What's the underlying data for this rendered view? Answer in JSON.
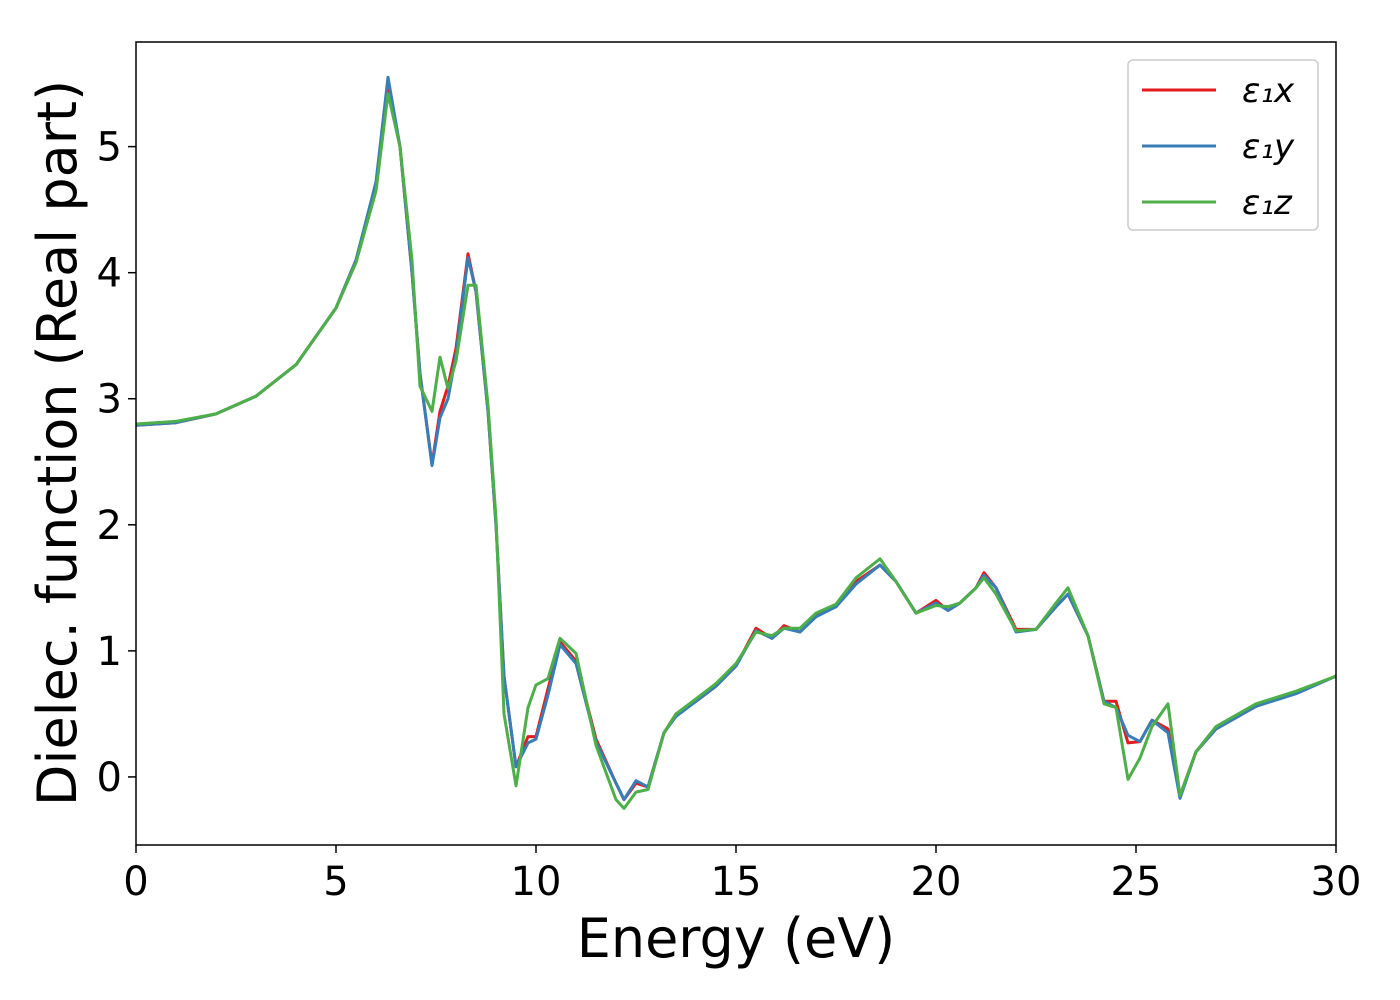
{
  "chart_data": {
    "type": "line",
    "xlabel": "Energy (eV)",
    "ylabel": "Dielec. function (Real part)",
    "xlim": [
      0,
      30
    ],
    "ylim": [
      -0.54,
      5.83
    ],
    "xticks": [
      0,
      5,
      10,
      15,
      20,
      25,
      30
    ],
    "yticks": [
      0,
      1,
      2,
      3,
      4,
      5
    ],
    "grid": false,
    "legend_position": "upper-right",
    "x": [
      0,
      1,
      2,
      3,
      4,
      5,
      5.5,
      6,
      6.3,
      6.6,
      6.9,
      7.1,
      7.4,
      7.6,
      7.8,
      8.0,
      8.3,
      8.5,
      8.8,
      9.0,
      9.2,
      9.5,
      9.8,
      10,
      10.3,
      10.6,
      11,
      11.5,
      12,
      12.2,
      12.5,
      12.8,
      13.2,
      13.5,
      14,
      14.5,
      15,
      15.5,
      15.9,
      16.2,
      16.6,
      17,
      17.5,
      18,
      18.6,
      19,
      19.5,
      20,
      20.3,
      20.6,
      21,
      21.2,
      21.5,
      22,
      22.5,
      23,
      23.3,
      23.8,
      24.2,
      24.5,
      24.8,
      25.1,
      25.4,
      25.8,
      26.1,
      26.5,
      27,
      28,
      29,
      30
    ],
    "series": [
      {
        "name": "ε₁x",
        "color": "#e41a1c",
        "values": [
          2.79,
          2.81,
          2.88,
          3.02,
          3.27,
          3.72,
          4.1,
          4.7,
          5.45,
          5.0,
          4.0,
          3.2,
          2.48,
          2.9,
          3.1,
          3.4,
          4.15,
          3.85,
          2.9,
          2.0,
          0.8,
          0.08,
          0.32,
          0.32,
          0.7,
          1.07,
          0.92,
          0.3,
          -0.05,
          -0.18,
          -0.05,
          -0.08,
          0.35,
          0.5,
          0.6,
          0.72,
          0.88,
          1.18,
          1.1,
          1.2,
          1.15,
          1.28,
          1.35,
          1.55,
          1.68,
          1.55,
          1.3,
          1.4,
          1.32,
          1.38,
          1.5,
          1.62,
          1.5,
          1.17,
          1.17,
          1.35,
          1.45,
          1.12,
          0.6,
          0.6,
          0.27,
          0.28,
          0.45,
          0.38,
          -0.15,
          0.2,
          0.38,
          0.56,
          0.67,
          0.8
        ]
      },
      {
        "name": "ε₁y",
        "color": "#377eb8",
        "values": [
          2.79,
          2.81,
          2.88,
          3.02,
          3.27,
          3.72,
          4.1,
          4.72,
          5.55,
          5.0,
          4.0,
          3.2,
          2.47,
          2.85,
          3.0,
          3.35,
          4.12,
          3.85,
          2.9,
          2.0,
          0.8,
          0.08,
          0.27,
          0.3,
          0.65,
          1.05,
          0.9,
          0.28,
          -0.05,
          -0.18,
          -0.03,
          -0.08,
          0.35,
          0.48,
          0.6,
          0.72,
          0.88,
          1.16,
          1.1,
          1.18,
          1.15,
          1.27,
          1.35,
          1.53,
          1.68,
          1.55,
          1.3,
          1.38,
          1.32,
          1.38,
          1.5,
          1.6,
          1.5,
          1.15,
          1.17,
          1.35,
          1.45,
          1.12,
          0.6,
          0.55,
          0.33,
          0.28,
          0.45,
          0.35,
          -0.17,
          0.2,
          0.38,
          0.56,
          0.66,
          0.8
        ]
      },
      {
        "name": "ε₁z",
        "color": "#4daf4a",
        "values": [
          2.8,
          2.82,
          2.88,
          3.02,
          3.27,
          3.72,
          4.08,
          4.65,
          5.42,
          5.0,
          4.1,
          3.1,
          2.9,
          3.33,
          3.08,
          3.3,
          3.9,
          3.9,
          2.95,
          2.05,
          0.5,
          -0.07,
          0.55,
          0.73,
          0.78,
          1.1,
          0.98,
          0.25,
          -0.18,
          -0.25,
          -0.12,
          -0.1,
          0.35,
          0.5,
          0.62,
          0.74,
          0.9,
          1.15,
          1.12,
          1.18,
          1.18,
          1.3,
          1.37,
          1.58,
          1.73,
          1.55,
          1.3,
          1.36,
          1.35,
          1.38,
          1.5,
          1.58,
          1.45,
          1.16,
          1.17,
          1.38,
          1.5,
          1.12,
          0.58,
          0.55,
          -0.02,
          0.15,
          0.4,
          0.58,
          -0.15,
          0.2,
          0.4,
          0.58,
          0.68,
          0.8
        ]
      }
    ]
  }
}
